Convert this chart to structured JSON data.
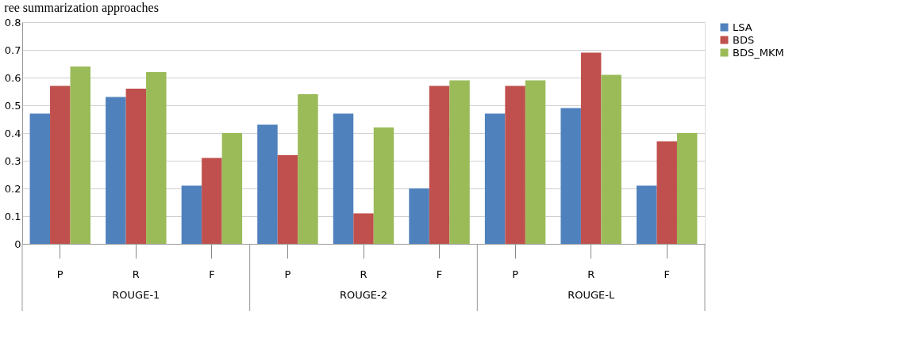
{
  "chart_data": {
    "type": "bar",
    "title": "ree summarization approaches",
    "categories": [
      "P",
      "R",
      "F",
      "P",
      "R",
      "F",
      "P",
      "R",
      "F"
    ],
    "annotations": [
      "ROUGE-1",
      "ROUGE-2",
      "ROUGE-L"
    ],
    "series": [
      {
        "name": "LSA",
        "color": "#4f81bd",
        "values": [
          0.47,
          0.53,
          0.21,
          0.43,
          0.47,
          0.2,
          0.47,
          0.49,
          0.21
        ]
      },
      {
        "name": "BDS",
        "color": "#c0504d",
        "values": [
          0.57,
          0.56,
          0.31,
          0.32,
          0.11,
          0.57,
          0.57,
          0.69,
          0.37
        ]
      },
      {
        "name": "BDS_MKM",
        "color": "#9bbb59",
        "values": [
          0.64,
          0.62,
          0.4,
          0.54,
          0.42,
          0.59,
          0.59,
          0.61,
          0.4
        ]
      }
    ],
    "ylim": [
      0,
      0.8
    ],
    "yticks": [
      0,
      0.1,
      0.2,
      0.3,
      0.4,
      0.5,
      0.6,
      0.7,
      0.8
    ],
    "grid": "y",
    "legend": "right"
  }
}
